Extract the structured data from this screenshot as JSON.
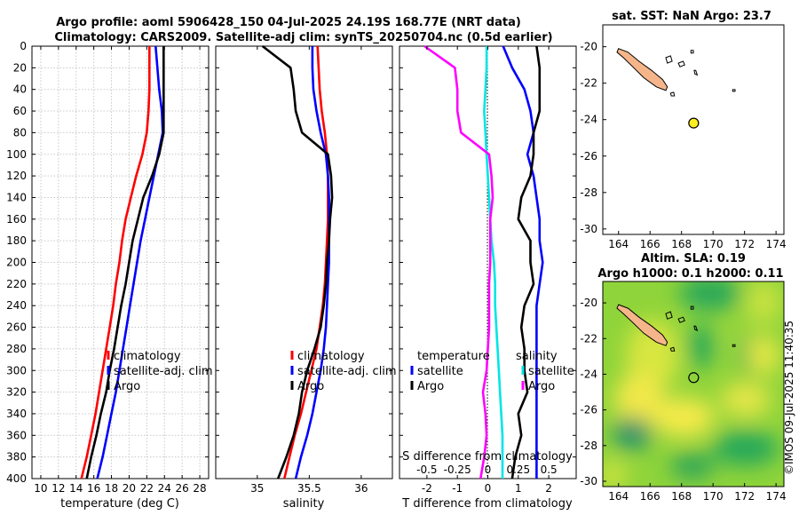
{
  "title_line1": "Argo profile: aoml 5906428_150 04-Jul-2025 24.19S 168.77E (NRT data)",
  "title_line2": "Climatology: CARS2009. Satellite-adj clim: synTS_20250704.nc (0.5d earlier)",
  "credit": "©IMOS 09-Jul-2025 11:40:35",
  "depth_ticks": [
    "0",
    "20",
    "40",
    "60",
    "80",
    "100",
    "120",
    "140",
    "160",
    "180",
    "200",
    "220",
    "240",
    "260",
    "280",
    "300",
    "320",
    "340",
    "360",
    "380",
    "400"
  ],
  "colors": {
    "climatology": "#ff0000",
    "satellite": "#0000ff",
    "argo": "#000000",
    "temp_diff": "#ff00ff",
    "sal_diff": "#00e5e5",
    "land": "#f5b58a"
  },
  "chart_data": [
    {
      "type": "line",
      "id": "temperature",
      "xlabel": "temperature (deg C)",
      "ylabel": "",
      "xlim": [
        9,
        29
      ],
      "ylim": [
        400,
        0
      ],
      "xticks": [
        "10",
        "12",
        "14",
        "16",
        "18",
        "20",
        "22",
        "24",
        "26",
        "28"
      ],
      "depth": [
        0,
        20,
        40,
        60,
        80,
        100,
        120,
        140,
        160,
        180,
        200,
        220,
        240,
        260,
        280,
        300,
        320,
        340,
        360,
        380,
        400
      ],
      "series": [
        {
          "name": "climatology",
          "values": [
            22.3,
            22.3,
            22.3,
            22.2,
            22.0,
            21.5,
            20.8,
            20.2,
            19.6,
            19.2,
            18.9,
            18.5,
            18.2,
            17.8,
            17.4,
            17.0,
            16.6,
            16.2,
            15.7,
            15.2,
            14.6
          ]
        },
        {
          "name": "satellite-adj. clim",
          "values": [
            23.0,
            23.2,
            23.4,
            23.7,
            23.8,
            23.3,
            22.8,
            22.3,
            21.8,
            21.3,
            20.9,
            20.5,
            20.1,
            19.7,
            19.3,
            18.9,
            18.5,
            18.0,
            17.5,
            17.0,
            16.4
          ]
        },
        {
          "name": "Argo",
          "values": [
            23.9,
            23.9,
            23.9,
            23.9,
            23.9,
            23.4,
            22.6,
            21.6,
            21.0,
            20.4,
            20.0,
            19.6,
            19.1,
            18.7,
            18.3,
            17.8,
            17.4,
            16.8,
            16.3,
            15.7,
            15.2
          ]
        }
      ],
      "legend": [
        "climatology",
        "satellite-adj. clim",
        "Argo"
      ]
    },
    {
      "type": "line",
      "id": "salinity",
      "xlabel": "salinity",
      "ylabel": "",
      "xlim": [
        34.6,
        36.3
      ],
      "ylim": [
        400,
        0
      ],
      "xticks": [
        "35",
        "35.5",
        "36"
      ],
      "depth": [
        0,
        20,
        40,
        60,
        80,
        100,
        120,
        140,
        160,
        180,
        200,
        220,
        240,
        260,
        280,
        300,
        320,
        340,
        360,
        380,
        400
      ],
      "series": [
        {
          "name": "climatology",
          "values": [
            35.58,
            35.59,
            35.6,
            35.62,
            35.65,
            35.67,
            35.68,
            35.68,
            35.68,
            35.67,
            35.66,
            35.65,
            35.63,
            35.6,
            35.57,
            35.52,
            35.47,
            35.42,
            35.36,
            35.31,
            35.26
          ]
        },
        {
          "name": "satellite-adj. clim",
          "values": [
            35.53,
            35.53,
            35.54,
            35.57,
            35.61,
            35.66,
            35.68,
            35.69,
            35.69,
            35.69,
            35.69,
            35.68,
            35.67,
            35.66,
            35.64,
            35.61,
            35.57,
            35.53,
            35.48,
            35.42,
            35.37
          ]
        },
        {
          "name": "Argo",
          "values": [
            35.05,
            35.32,
            35.35,
            35.37,
            35.43,
            35.68,
            35.71,
            35.72,
            35.7,
            35.69,
            35.67,
            35.66,
            35.64,
            35.61,
            35.55,
            35.48,
            35.43,
            35.4,
            35.35,
            35.28,
            35.2
          ]
        }
      ],
      "legend": [
        "climatology",
        "satellite-adj. clim",
        "Argo"
      ]
    },
    {
      "type": "line",
      "id": "differences",
      "xlabel": "T difference from climatology",
      "xlabel_top": "S difference from climatology",
      "xlim": [
        -2.9,
        2.9
      ],
      "ylim": [
        400,
        0
      ],
      "xticks": [
        "-2",
        "-1",
        "0",
        "1",
        "2"
      ],
      "xticks_top": [
        "-0.5",
        "-0.25",
        "0",
        "0.25",
        "0.5"
      ],
      "depth": [
        0,
        20,
        40,
        60,
        80,
        100,
        120,
        140,
        160,
        180,
        200,
        220,
        240,
        260,
        280,
        300,
        320,
        340,
        360,
        380,
        400
      ],
      "series": [
        {
          "name": "temperature satellite",
          "axis": "T",
          "values": [
            0.5,
            0.8,
            1.2,
            1.4,
            1.5,
            1.3,
            1.5,
            1.6,
            1.7,
            1.7,
            1.8,
            1.7,
            1.6,
            1.6,
            1.6,
            1.6,
            1.6,
            1.6,
            1.6,
            1.6,
            1.6
          ]
        },
        {
          "name": "temperature Argo",
          "axis": "T",
          "values": [
            1.6,
            1.7,
            1.7,
            1.7,
            1.5,
            1.5,
            1.4,
            1.1,
            1.0,
            1.4,
            1.4,
            1.5,
            1.2,
            1.1,
            1.2,
            1.2,
            1.3,
            1.0,
            1.1,
            0.9,
            0.8
          ]
        },
        {
          "name": "salinity satellite",
          "axis": "S",
          "values": [
            -0.01,
            -0.01,
            -0.02,
            -0.03,
            -0.02,
            -0.01,
            0.0,
            0.01,
            0.02,
            0.03,
            0.05,
            0.06,
            0.06,
            0.07,
            0.08,
            0.09,
            0.1,
            0.11,
            0.12,
            0.12,
            0.12
          ]
        },
        {
          "name": "salinity Argo",
          "axis": "S",
          "values": [
            -0.52,
            -0.27,
            -0.25,
            -0.25,
            -0.22,
            0.01,
            0.03,
            0.04,
            0.02,
            0.02,
            0.02,
            0.01,
            0.01,
            0.01,
            0.0,
            -0.01,
            -0.04,
            -0.02,
            -0.01,
            -0.03,
            -0.06
          ]
        }
      ],
      "legend_titles": [
        "temperature",
        "salinity"
      ],
      "legend": [
        "satellite",
        "Argo",
        "satellite",
        "Argo"
      ]
    },
    {
      "type": "map",
      "id": "sst_map",
      "title": "sat. SST: NaN Argo: 23.7",
      "xlim": [
        163,
        174.5
      ],
      "ylim": [
        -30.3,
        -18.8
      ],
      "xticks": [
        "164",
        "166",
        "168",
        "170",
        "172",
        "174"
      ],
      "yticks": [
        "-20",
        "-22",
        "-24",
        "-26",
        "-28",
        "-30"
      ],
      "float_lon": 168.77,
      "float_lat": -24.19
    },
    {
      "type": "heatmap",
      "id": "sla_map",
      "title_line1": "Altim. SLA: 0.19",
      "title_line2": "Argo h1000: 0.1 h2000: 0.11",
      "xlim": [
        163,
        174.5
      ],
      "ylim": [
        -30.3,
        -18.8
      ],
      "xticks": [
        "164",
        "166",
        "168",
        "170",
        "172",
        "174"
      ],
      "yticks": [
        "-20",
        "-22",
        "-24",
        "-26",
        "-28",
        "-30"
      ],
      "float_lon": 168.77,
      "float_lat": -24.19
    }
  ]
}
